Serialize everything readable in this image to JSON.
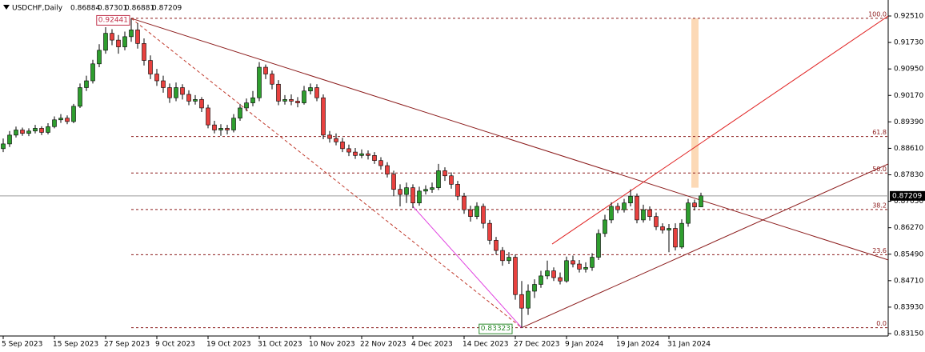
{
  "chart_data": {
    "type": "candlestick",
    "symbol": "USDCHF,Daily",
    "header_ohlc": [
      0.86884,
      0.87301,
      0.86881,
      0.87209
    ],
    "categories": [
      "5 Sep 2023",
      null,
      null,
      null,
      null,
      null,
      null,
      null,
      "15 Sep 2023",
      null,
      null,
      null,
      null,
      null,
      null,
      null,
      "27 Sep 2023",
      null,
      null,
      null,
      null,
      null,
      null,
      null,
      "9 Oct 2023",
      null,
      null,
      null,
      null,
      null,
      null,
      null,
      "19 Oct 2023",
      null,
      null,
      null,
      null,
      null,
      null,
      null,
      "31 Oct 2023",
      null,
      null,
      null,
      null,
      null,
      null,
      null,
      "10 Nov 2023",
      null,
      null,
      null,
      null,
      null,
      null,
      null,
      "22 Nov 2023",
      null,
      null,
      null,
      null,
      null,
      null,
      null,
      "4 Dec 2023",
      null,
      null,
      null,
      null,
      null,
      null,
      null,
      "14 Dec 2023",
      null,
      null,
      null,
      null,
      null,
      null,
      null,
      "27 Dec 2023",
      null,
      null,
      null,
      null,
      null,
      null,
      null,
      "9 Jan 2024",
      null,
      null,
      null,
      null,
      null,
      null,
      null,
      "19 Jan 2024",
      null,
      null,
      null,
      null,
      null,
      null,
      null,
      "31 Jan 2024",
      null,
      null,
      null,
      null,
      null
    ],
    "candles": [
      [
        0.886,
        0.889,
        0.885,
        0.8874
      ],
      [
        0.8874,
        0.8912,
        0.8865,
        0.89
      ],
      [
        0.89,
        0.8925,
        0.8893,
        0.8915
      ],
      [
        0.8915,
        0.8922,
        0.8898,
        0.8905
      ],
      [
        0.8905,
        0.892,
        0.8897,
        0.8912
      ],
      [
        0.8912,
        0.893,
        0.8905,
        0.892
      ],
      [
        0.892,
        0.8926,
        0.89,
        0.8908
      ],
      [
        0.8908,
        0.8935,
        0.8902,
        0.8925
      ],
      [
        0.8925,
        0.8955,
        0.892,
        0.8945
      ],
      [
        0.8945,
        0.8962,
        0.8936,
        0.895
      ],
      [
        0.895,
        0.8958,
        0.8932,
        0.894
      ],
      [
        0.894,
        0.8992,
        0.8935,
        0.8985
      ],
      [
        0.8985,
        0.9052,
        0.898,
        0.904
      ],
      [
        0.904,
        0.9075,
        0.903,
        0.906
      ],
      [
        0.906,
        0.9122,
        0.9052,
        0.911
      ],
      [
        0.911,
        0.9168,
        0.91,
        0.915
      ],
      [
        0.915,
        0.9218,
        0.914,
        0.92
      ],
      [
        0.92,
        0.9212,
        0.9165,
        0.918
      ],
      [
        0.918,
        0.9195,
        0.914,
        0.916
      ],
      [
        0.916,
        0.9205,
        0.915,
        0.919
      ],
      [
        0.919,
        0.92441,
        0.9175,
        0.921
      ],
      [
        0.921,
        0.923,
        0.9155,
        0.917
      ],
      [
        0.917,
        0.9185,
        0.9105,
        0.912
      ],
      [
        0.912,
        0.9135,
        0.9065,
        0.908
      ],
      [
        0.908,
        0.9095,
        0.9045,
        0.906
      ],
      [
        0.906,
        0.9075,
        0.9025,
        0.904
      ],
      [
        0.904,
        0.9052,
        0.8995,
        0.901
      ],
      [
        0.901,
        0.9055,
        0.9,
        0.904
      ],
      [
        0.904,
        0.905,
        0.9005,
        0.902
      ],
      [
        0.902,
        0.9032,
        0.8988,
        0.9
      ],
      [
        0.9,
        0.9018,
        0.899,
        0.9005
      ],
      [
        0.9005,
        0.9012,
        0.8968,
        0.898
      ],
      [
        0.898,
        0.899,
        0.892,
        0.893
      ],
      [
        0.893,
        0.8942,
        0.8905,
        0.8915
      ],
      [
        0.8915,
        0.8932,
        0.8898,
        0.892
      ],
      [
        0.892,
        0.893,
        0.8902,
        0.8915
      ],
      [
        0.8915,
        0.8962,
        0.8908,
        0.895
      ],
      [
        0.895,
        0.8992,
        0.8942,
        0.898
      ],
      [
        0.898,
        0.9008,
        0.897,
        0.8995
      ],
      [
        0.8995,
        0.903,
        0.8985,
        0.901
      ],
      [
        0.901,
        0.9115,
        0.9,
        0.91
      ],
      [
        0.91,
        0.9108,
        0.9065,
        0.908
      ],
      [
        0.908,
        0.909,
        0.9035,
        0.905
      ],
      [
        0.905,
        0.9062,
        0.8988,
        0.9
      ],
      [
        0.9,
        0.9018,
        0.899,
        0.9005
      ],
      [
        0.9005,
        0.902,
        0.8988,
        0.9
      ],
      [
        0.9,
        0.9012,
        0.8982,
        0.8995
      ],
      [
        0.8995,
        0.9045,
        0.899,
        0.903
      ],
      [
        0.903,
        0.9052,
        0.902,
        0.904
      ],
      [
        0.904,
        0.905,
        0.9,
        0.901
      ],
      [
        0.901,
        0.902,
        0.8888,
        0.89
      ],
      [
        0.89,
        0.8912,
        0.8878,
        0.889
      ],
      [
        0.889,
        0.8905,
        0.887,
        0.888
      ],
      [
        0.888,
        0.8892,
        0.885,
        0.886
      ],
      [
        0.886,
        0.8872,
        0.8838,
        0.885
      ],
      [
        0.885,
        0.8862,
        0.883,
        0.884
      ],
      [
        0.884,
        0.8858,
        0.8832,
        0.8845
      ],
      [
        0.8845,
        0.8855,
        0.8828,
        0.884
      ],
      [
        0.884,
        0.885,
        0.8815,
        0.8825
      ],
      [
        0.8825,
        0.8835,
        0.8798,
        0.881
      ],
      [
        0.881,
        0.882,
        0.8775,
        0.8785
      ],
      [
        0.8785,
        0.8795,
        0.872,
        0.874
      ],
      [
        0.874,
        0.8755,
        0.869,
        0.8725
      ],
      [
        0.8725,
        0.876,
        0.87,
        0.8745
      ],
      [
        0.8745,
        0.8755,
        0.8685,
        0.87
      ],
      [
        0.87,
        0.8748,
        0.8692,
        0.8735
      ],
      [
        0.8735,
        0.8752,
        0.8725,
        0.874
      ],
      [
        0.874,
        0.876,
        0.873,
        0.8745
      ],
      [
        0.8745,
        0.8815,
        0.8738,
        0.8795
      ],
      [
        0.8795,
        0.8805,
        0.8765,
        0.878
      ],
      [
        0.878,
        0.879,
        0.8742,
        0.8755
      ],
      [
        0.8755,
        0.8765,
        0.8708,
        0.872
      ],
      [
        0.872,
        0.873,
        0.8668,
        0.868
      ],
      [
        0.868,
        0.8692,
        0.8645,
        0.866
      ],
      [
        0.866,
        0.8702,
        0.8652,
        0.869
      ],
      [
        0.869,
        0.8698,
        0.8625,
        0.864
      ],
      [
        0.864,
        0.865,
        0.8578,
        0.859
      ],
      [
        0.859,
        0.86,
        0.8548,
        0.856
      ],
      [
        0.856,
        0.857,
        0.8515,
        0.853
      ],
      [
        0.853,
        0.8555,
        0.852,
        0.854
      ],
      [
        0.854,
        0.8548,
        0.8415,
        0.843
      ],
      [
        0.843,
        0.847,
        0.83323,
        0.839
      ],
      [
        0.839,
        0.846,
        0.837,
        0.844
      ],
      [
        0.844,
        0.8475,
        0.842,
        0.846
      ],
      [
        0.846,
        0.85,
        0.845,
        0.8485
      ],
      [
        0.8485,
        0.853,
        0.8475,
        0.85
      ],
      [
        0.85,
        0.851,
        0.847,
        0.848
      ],
      [
        0.848,
        0.8495,
        0.846,
        0.847
      ],
      [
        0.847,
        0.8542,
        0.8465,
        0.853
      ],
      [
        0.853,
        0.8545,
        0.851,
        0.852
      ],
      [
        0.852,
        0.8532,
        0.8495,
        0.8505
      ],
      [
        0.8505,
        0.8525,
        0.8495,
        0.851
      ],
      [
        0.851,
        0.8552,
        0.85,
        0.854
      ],
      [
        0.854,
        0.8622,
        0.8532,
        0.861
      ],
      [
        0.861,
        0.8665,
        0.86,
        0.865
      ],
      [
        0.865,
        0.8702,
        0.864,
        0.869
      ],
      [
        0.869,
        0.87,
        0.867,
        0.868
      ],
      [
        0.868,
        0.8712,
        0.8672,
        0.87
      ],
      [
        0.87,
        0.874,
        0.869,
        0.872
      ],
      [
        0.872,
        0.8728,
        0.864,
        0.865
      ],
      [
        0.865,
        0.8695,
        0.8642,
        0.868
      ],
      [
        0.868,
        0.869,
        0.8648,
        0.866
      ],
      [
        0.866,
        0.8672,
        0.862,
        0.863
      ],
      [
        0.863,
        0.864,
        0.861,
        0.862
      ],
      [
        0.862,
        0.8638,
        0.8555,
        0.8625
      ],
      [
        0.8625,
        0.864,
        0.856,
        0.857
      ],
      [
        0.857,
        0.8652,
        0.8565,
        0.864
      ],
      [
        0.864,
        0.8712,
        0.863,
        0.87
      ],
      [
        0.87,
        0.871,
        0.8678,
        0.86884
      ],
      [
        0.86884,
        0.87301,
        0.86881,
        0.87209
      ]
    ],
    "bull_color": "#2e9e2e",
    "bear_color": "#e8413f",
    "ylim": [
      0.8315,
      0.9251
    ],
    "yticks": [
      {
        "value": 0.9251,
        "label": "0.92510"
      },
      {
        "value": 0.9173,
        "label": "0.91730"
      },
      {
        "value": 0.9095,
        "label": "0.90950"
      },
      {
        "value": 0.9017,
        "label": "0.90170"
      },
      {
        "value": 0.8939,
        "label": "0.89390"
      },
      {
        "value": 0.8861,
        "label": "0.88610"
      },
      {
        "value": 0.8783,
        "label": "0.87830"
      },
      {
        "value": 0.8705,
        "label": "0.87050"
      },
      {
        "value": 0.8627,
        "label": "0.86270"
      },
      {
        "value": 0.8549,
        "label": "0.85490"
      },
      {
        "value": 0.8471,
        "label": "0.84710"
      },
      {
        "value": 0.8393,
        "label": "0.83930"
      },
      {
        "value": 0.8315,
        "label": "0.83150"
      }
    ],
    "last_price": 0.87209,
    "high_label": {
      "index": 20,
      "price": 0.92441
    },
    "low_label": {
      "index": 81,
      "price": 0.83323
    },
    "fibonacci": {
      "from_index": 20,
      "color": "#8b1a1a",
      "levels": [
        {
          "level": {
            "value": 100,
            "label": "100.0"
          },
          "price": 0.92441
        },
        {
          "level": 61.8,
          "price": 0.88958
        },
        {
          "level": {
            "value": 50,
            "label": "50.0"
          },
          "price": 0.87882
        },
        {
          "level": 38.2,
          "price": 0.86806
        },
        {
          "level": 23.6,
          "price": 0.85475
        },
        {
          "level": {
            "value": 0,
            "label": "0.0"
          },
          "price": 0.83323
        }
      ]
    },
    "trendlines": [
      {
        "from": [
          20,
          0.92441
        ],
        "to": [
          138.25,
          0.8532
        ],
        "color": "#8b1a1a",
        "dashed": false
      },
      {
        "from": [
          20,
          0.92441
        ],
        "to": [
          81,
          0.83323
        ],
        "color": "#c0392b",
        "dashed": true
      },
      {
        "from": [
          64,
          0.869
        ],
        "to": [
          81,
          0.83323
        ],
        "color": "#e040e0",
        "dashed": false
      },
      {
        "from": [
          81,
          0.83323
        ],
        "to": [
          138.25,
          0.8815
        ],
        "color": "#8b1a1a",
        "dashed": false
      },
      {
        "from": [
          85.75,
          0.8579
        ],
        "to": [
          138.25,
          0.9251
        ],
        "color": "#e02020",
        "dashed": false
      }
    ],
    "projection": {
      "index": 108,
      "from": 0.92441,
      "to": 0.8745,
      "color": "#fcd9b6"
    }
  }
}
